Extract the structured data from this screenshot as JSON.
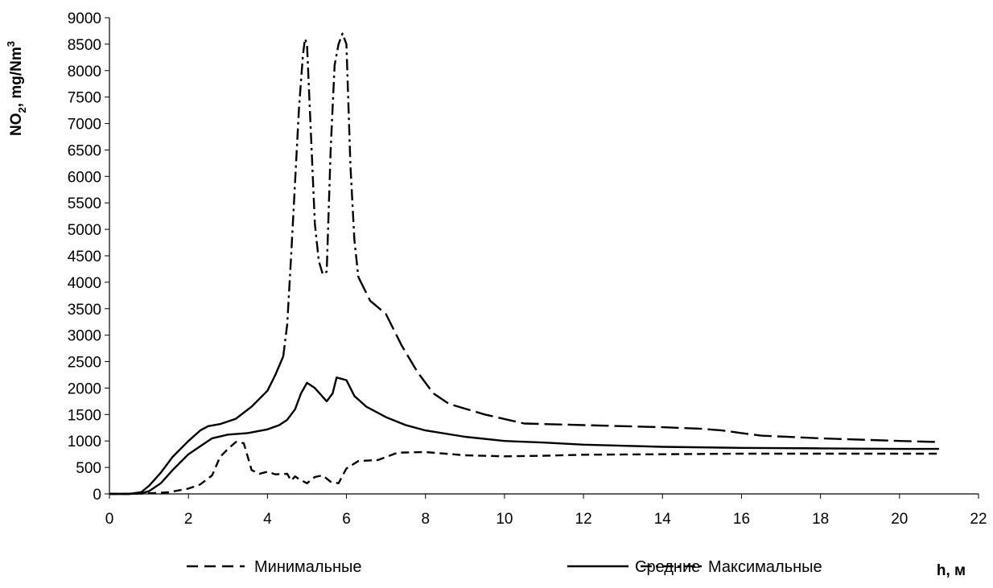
{
  "chart_data": {
    "type": "line",
    "xlabel": "h, м",
    "ylabel_parts": {
      "base": "NO",
      "subscript": "2",
      "mid": ", mg/Nm",
      "superscript": "3"
    },
    "xlim": [
      0,
      22
    ],
    "ylim": [
      0,
      9000
    ],
    "x_ticks": [
      0,
      2,
      4,
      6,
      8,
      10,
      12,
      14,
      16,
      18,
      20,
      22
    ],
    "y_ticks": [
      0,
      500,
      1000,
      1500,
      2000,
      2500,
      3000,
      3500,
      4000,
      4500,
      5000,
      5500,
      6000,
      6500,
      7000,
      7500,
      8000,
      8500,
      9000
    ],
    "grid": false,
    "legend_position": "bottom",
    "series": [
      {
        "name": "Минимальные",
        "style": "dashed",
        "x": [
          0,
          0.5,
          1.0,
          1.5,
          2.0,
          2.3,
          2.6,
          2.8,
          3.0,
          3.2,
          3.4,
          3.6,
          3.8,
          4.0,
          4.2,
          4.5,
          4.6,
          4.7,
          4.8,
          5.0,
          5.2,
          5.4,
          5.6,
          5.8,
          6.0,
          6.3,
          6.8,
          7.3,
          8.0,
          9.0,
          10.0,
          11.0,
          12.0,
          14.0,
          16.0,
          18.0,
          20.0,
          21.0
        ],
        "y": [
          0,
          0,
          10,
          30,
          100,
          180,
          350,
          700,
          850,
          980,
          960,
          450,
          380,
          420,
          370,
          380,
          250,
          330,
          280,
          200,
          320,
          350,
          230,
          200,
          480,
          620,
          640,
          780,
          790,
          730,
          710,
          720,
          740,
          750,
          760,
          760,
          760,
          760
        ]
      },
      {
        "name": "Средние",
        "style": "solid",
        "x": [
          0,
          0.5,
          0.8,
          1.0,
          1.3,
          1.6,
          2.0,
          2.3,
          2.6,
          3.0,
          3.5,
          4.0,
          4.3,
          4.5,
          4.7,
          4.85,
          5.0,
          5.2,
          5.5,
          5.65,
          5.75,
          6.0,
          6.2,
          6.5,
          7.0,
          7.5,
          8.0,
          9.0,
          10.0,
          11.0,
          12.0,
          14.0,
          16.0,
          18.0,
          20.0,
          21.0
        ],
        "y": [
          0,
          0,
          10,
          50,
          200,
          450,
          750,
          900,
          1050,
          1120,
          1150,
          1220,
          1300,
          1400,
          1600,
          1900,
          2100,
          2000,
          1750,
          1900,
          2200,
          2150,
          1850,
          1650,
          1450,
          1300,
          1200,
          1080,
          1000,
          970,
          930,
          890,
          870,
          860,
          850,
          850
        ]
      },
      {
        "name": "",
        "style": "solid",
        "x": [
          0,
          0.5,
          0.8,
          1.0,
          1.3,
          1.6,
          2.0,
          2.3,
          2.5,
          2.8,
          3.2,
          3.6,
          4.0,
          4.2,
          4.4
        ],
        "y": [
          0,
          0,
          30,
          150,
          400,
          700,
          1000,
          1200,
          1280,
          1320,
          1420,
          1650,
          1950,
          2250,
          2600
        ]
      },
      {
        "name": "Максимальные",
        "style": "dashdot",
        "x": [
          4.4,
          4.5,
          4.6,
          4.7,
          4.8,
          4.9,
          4.95,
          5.0,
          5.1,
          5.2,
          5.3,
          5.4,
          5.5,
          5.6,
          5.7,
          5.8,
          5.9,
          6.0,
          6.1,
          6.2,
          6.3
        ],
        "y": [
          2600,
          3200,
          4500,
          5900,
          7300,
          8300,
          8600,
          8500,
          6800,
          5100,
          4400,
          4150,
          4200,
          6500,
          8100,
          8500,
          8700,
          8500,
          6200,
          4800,
          4100
        ]
      },
      {
        "name": "",
        "style": "longdash",
        "x": [
          6.3,
          6.6,
          7.0,
          7.4,
          7.8,
          8.2,
          8.6,
          9.5,
          10.5,
          12.0,
          14.0,
          15.0,
          15.5,
          16.0,
          16.5,
          18.0,
          20.0,
          21.0
        ],
        "y": [
          4100,
          3650,
          3400,
          2800,
          2300,
          1900,
          1700,
          1500,
          1330,
          1300,
          1260,
          1230,
          1200,
          1150,
          1100,
          1050,
          1000,
          980
        ]
      }
    ]
  }
}
